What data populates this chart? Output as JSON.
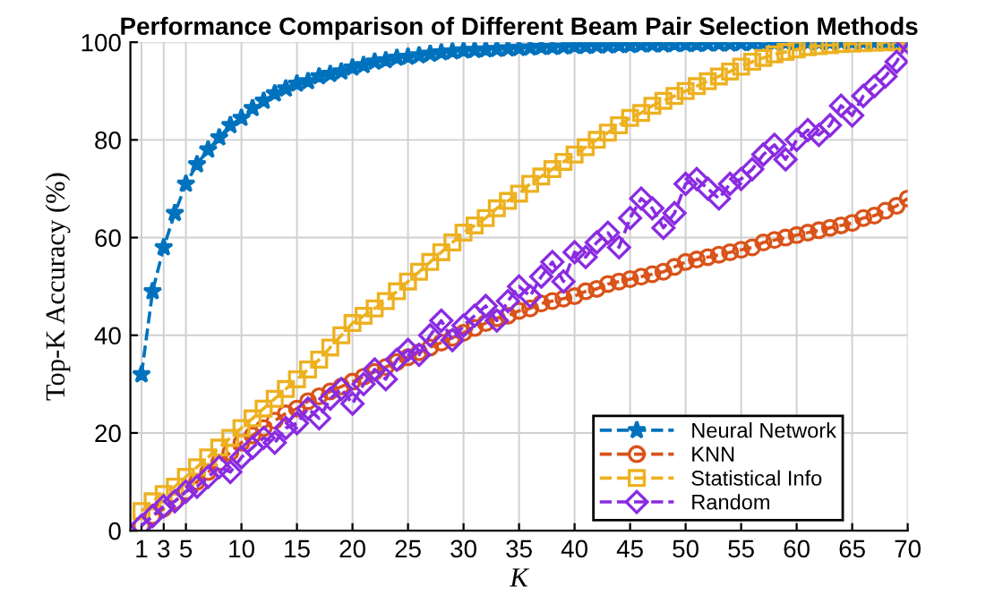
{
  "chart_data": {
    "type": "line",
    "title": "Performance Comparison of Different Beam Pair Selection Methods",
    "xlabel": "K",
    "ylabel": "Top-K Accuracy (%)",
    "x": [
      1,
      2,
      3,
      4,
      5,
      6,
      7,
      8,
      9,
      10,
      11,
      12,
      13,
      14,
      15,
      16,
      17,
      18,
      19,
      20,
      21,
      22,
      23,
      24,
      25,
      26,
      27,
      28,
      29,
      30,
      31,
      32,
      33,
      34,
      35,
      36,
      37,
      38,
      39,
      40,
      41,
      42,
      43,
      44,
      45,
      46,
      47,
      48,
      49,
      50,
      51,
      52,
      53,
      54,
      55,
      56,
      57,
      58,
      59,
      60,
      61,
      62,
      63,
      64,
      65,
      66,
      67,
      68,
      69,
      70
    ],
    "series": [
      {
        "name": "Neural Network",
        "color": "#0072bd",
        "marker": "star",
        "values": [
          32,
          49,
          58,
          65,
          71,
          75,
          78,
          80.5,
          83,
          84.5,
          86.5,
          88,
          89.5,
          90.5,
          91.5,
          92,
          93,
          93.5,
          94,
          94.8,
          95.3,
          96,
          96.3,
          96.8,
          97,
          97.3,
          97.6,
          97.9,
          98.1,
          98.3,
          98.4,
          98.5,
          98.6,
          98.7,
          98.8,
          98.9,
          99,
          99,
          99.1,
          99.2,
          99.2,
          99.3,
          99.3,
          99.4,
          99.4,
          99.5,
          99.5,
          99.5,
          99.6,
          99.6,
          99.6,
          99.7,
          99.7,
          99.7,
          99.8,
          99.8,
          99.8,
          99.8,
          99.9,
          99.9,
          99.9,
          99.9,
          99.9,
          100,
          100,
          100,
          100,
          100,
          100,
          100
        ]
      },
      {
        "name": "KNN",
        "color": "#d95319",
        "marker": "circle",
        "values": [
          1,
          3,
          4.5,
          6,
          8,
          10,
          12,
          14,
          16,
          18,
          19.5,
          21,
          22.5,
          24,
          25,
          26.5,
          27.5,
          28.5,
          29.5,
          30.5,
          31.5,
          32.5,
          33.5,
          34.5,
          35.5,
          36.5,
          37.5,
          38.5,
          39.5,
          40.5,
          41.5,
          42.5,
          43.5,
          44,
          45,
          45.5,
          46.5,
          47,
          47.5,
          48,
          49,
          49.5,
          50.5,
          51,
          51.5,
          52,
          52.5,
          53,
          54,
          55,
          55.5,
          56,
          56.5,
          57,
          57.5,
          58,
          59,
          59.5,
          60,
          60.5,
          61,
          61.5,
          62,
          62.5,
          63,
          64,
          64.5,
          65.5,
          66.5,
          68
        ]
      },
      {
        "name": "Statistical Info",
        "color": "#edb120",
        "marker": "square",
        "values": [
          4,
          6,
          7.5,
          9,
          11,
          13,
          15,
          17,
          19,
          21,
          23,
          25,
          27,
          29,
          31,
          33,
          35,
          37.5,
          40,
          42.5,
          44,
          45.5,
          47,
          49,
          51,
          53,
          55,
          57,
          59,
          61,
          62.5,
          64,
          66,
          67.5,
          69,
          71,
          72.5,
          74,
          75.5,
          77,
          78.5,
          80,
          81.5,
          83,
          84.5,
          85.5,
          87,
          88,
          89,
          90,
          91,
          92,
          93,
          94,
          95,
          96,
          96.8,
          97.5,
          98,
          98.5,
          99,
          99.2,
          99.4,
          99.6,
          99.7,
          99.8,
          99.9,
          100,
          100,
          100
        ]
      },
      {
        "name": "Random",
        "color": "#8a2be2",
        "marker": "diamond",
        "values": [
          1,
          3,
          5,
          6,
          8,
          9,
          11,
          13,
          12,
          15,
          17,
          19,
          18,
          21,
          22,
          25,
          23,
          27,
          29,
          26,
          30,
          33,
          31,
          35,
          37,
          36,
          40,
          43,
          39,
          42,
          44,
          46,
          43,
          47,
          50,
          48,
          52,
          55,
          51,
          57,
          56,
          59,
          61,
          58,
          64,
          68,
          66,
          62,
          65,
          71,
          72,
          70,
          68,
          71,
          72,
          74,
          77,
          79,
          76,
          80,
          82,
          81,
          83,
          87,
          85,
          89,
          91,
          93,
          96,
          100
        ]
      }
    ],
    "xlim": [
      0,
      70
    ],
    "xticks": [
      1,
      3,
      5,
      10,
      15,
      20,
      25,
      30,
      35,
      40,
      45,
      50,
      55,
      60,
      65,
      70
    ],
    "ylim": [
      0,
      100
    ],
    "yticks": [
      0,
      20,
      40,
      60,
      80,
      100
    ],
    "grid": true,
    "legend": "bottom right",
    "line_style": "dashed"
  }
}
